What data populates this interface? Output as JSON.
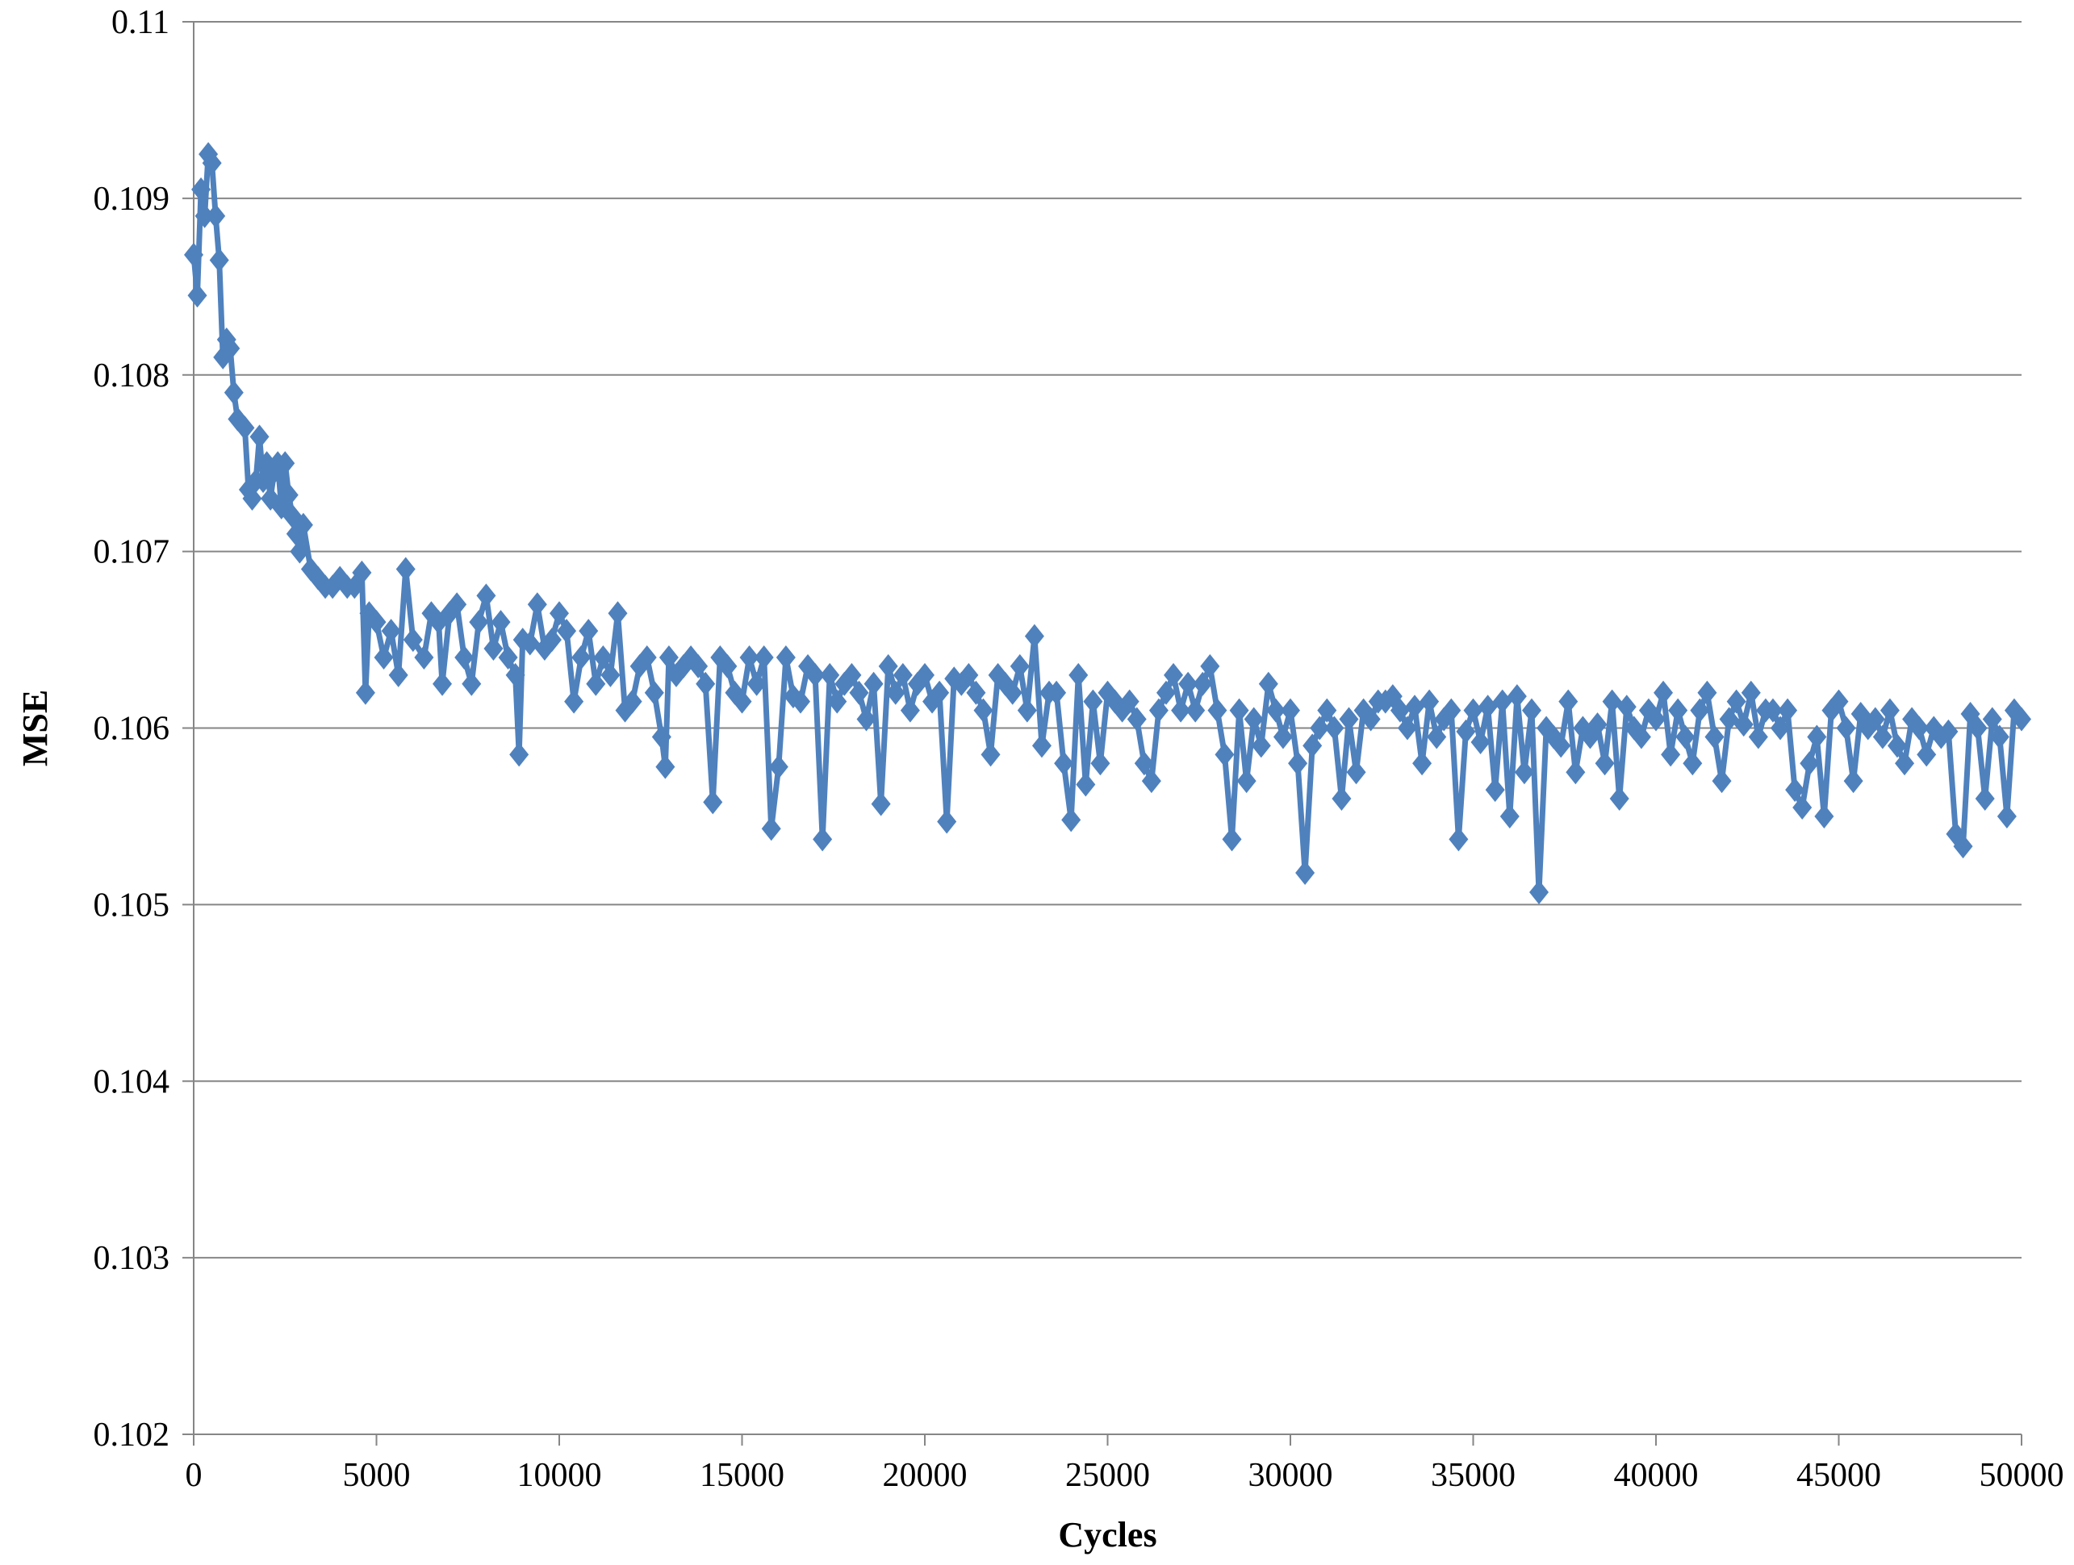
{
  "chart_data": {
    "type": "line",
    "title": "",
    "xlabel": "Cycles",
    "ylabel": "MSE",
    "xlim": [
      0,
      50000
    ],
    "ylim": [
      0.102,
      0.11
    ],
    "x_ticks": [
      "0",
      "5000",
      "10000",
      "15000",
      "20000",
      "25000",
      "30000",
      "35000",
      "40000",
      "45000",
      "50000"
    ],
    "y_ticks": [
      "0.102",
      "0.103",
      "0.104",
      "0.105",
      "0.106",
      "0.107",
      "0.108",
      "0.109",
      "0.11"
    ],
    "grid": "horizontal",
    "legend": "none",
    "marker": "diamond",
    "series": [
      {
        "color": "#4f81bd",
        "points": [
          [
            0,
            0.10868
          ],
          [
            100,
            0.10845
          ],
          [
            200,
            0.10905
          ],
          [
            300,
            0.1089
          ],
          [
            400,
            0.10925
          ],
          [
            500,
            0.1092
          ],
          [
            600,
            0.1089
          ],
          [
            700,
            0.10865
          ],
          [
            800,
            0.1081
          ],
          [
            900,
            0.1082
          ],
          [
            1000,
            0.10815
          ],
          [
            1100,
            0.1079
          ],
          [
            1200,
            0.10775
          ],
          [
            1400,
            0.1077
          ],
          [
            1500,
            0.10735
          ],
          [
            1600,
            0.1073
          ],
          [
            1700,
            0.1074
          ],
          [
            1800,
            0.10765
          ],
          [
            1900,
            0.1074
          ],
          [
            2000,
            0.1075
          ],
          [
            2100,
            0.1073
          ],
          [
            2200,
            0.10745
          ],
          [
            2300,
            0.1075
          ],
          [
            2400,
            0.10725
          ],
          [
            2500,
            0.1075
          ],
          [
            2600,
            0.10732
          ],
          [
            2700,
            0.1072
          ],
          [
            2800,
            0.1071
          ],
          [
            2900,
            0.107
          ],
          [
            3000,
            0.10715
          ],
          [
            3200,
            0.1069
          ],
          [
            3400,
            0.10685
          ],
          [
            3600,
            0.1068
          ],
          [
            3800,
            0.1068
          ],
          [
            4000,
            0.10685
          ],
          [
            4200,
            0.1068
          ],
          [
            4400,
            0.1068
          ],
          [
            4600,
            0.10688
          ],
          [
            4700,
            0.1062
          ],
          [
            4800,
            0.10665
          ],
          [
            5000,
            0.1066
          ],
          [
            5200,
            0.1064
          ],
          [
            5400,
            0.10655
          ],
          [
            5600,
            0.1063
          ],
          [
            5800,
            0.1069
          ],
          [
            6000,
            0.1065
          ],
          [
            6300,
            0.1064
          ],
          [
            6500,
            0.10665
          ],
          [
            6700,
            0.1066
          ],
          [
            6800,
            0.10625
          ],
          [
            7000,
            0.10665
          ],
          [
            7200,
            0.1067
          ],
          [
            7400,
            0.1064
          ],
          [
            7600,
            0.10625
          ],
          [
            7800,
            0.1066
          ],
          [
            8000,
            0.10675
          ],
          [
            8200,
            0.10645
          ],
          [
            8400,
            0.1066
          ],
          [
            8600,
            0.1064
          ],
          [
            8800,
            0.1063
          ],
          [
            8900,
            0.10585
          ],
          [
            9000,
            0.1065
          ],
          [
            9200,
            0.10648
          ],
          [
            9400,
            0.1067
          ],
          [
            9600,
            0.10645
          ],
          [
            9800,
            0.1065
          ],
          [
            10000,
            0.10665
          ],
          [
            10200,
            0.10655
          ],
          [
            10400,
            0.10615
          ],
          [
            10600,
            0.1064
          ],
          [
            10800,
            0.10655
          ],
          [
            11000,
            0.10625
          ],
          [
            11200,
            0.1064
          ],
          [
            11400,
            0.1063
          ],
          [
            11600,
            0.10665
          ],
          [
            11800,
            0.1061
          ],
          [
            12000,
            0.10615
          ],
          [
            12200,
            0.10635
          ],
          [
            12400,
            0.1064
          ],
          [
            12600,
            0.1062
          ],
          [
            12800,
            0.10595
          ],
          [
            12900,
            0.10578
          ],
          [
            13000,
            0.1064
          ],
          [
            13200,
            0.1063
          ],
          [
            13400,
            0.10635
          ],
          [
            13600,
            0.1064
          ],
          [
            13800,
            0.10635
          ],
          [
            14000,
            0.10625
          ],
          [
            14200,
            0.10558
          ],
          [
            14400,
            0.1064
          ],
          [
            14600,
            0.10635
          ],
          [
            14800,
            0.1062
          ],
          [
            15000,
            0.10615
          ],
          [
            15200,
            0.1064
          ],
          [
            15400,
            0.10625
          ],
          [
            15600,
            0.1064
          ],
          [
            15800,
            0.10543
          ],
          [
            16000,
            0.10578
          ],
          [
            16200,
            0.1064
          ],
          [
            16400,
            0.10618
          ],
          [
            16600,
            0.10615
          ],
          [
            16800,
            0.10635
          ],
          [
            17000,
            0.1063
          ],
          [
            17200,
            0.10537
          ],
          [
            17400,
            0.1063
          ],
          [
            17600,
            0.10615
          ],
          [
            17800,
            0.10625
          ],
          [
            18000,
            0.1063
          ],
          [
            18200,
            0.1062
          ],
          [
            18400,
            0.10605
          ],
          [
            18600,
            0.10625
          ],
          [
            18800,
            0.10557
          ],
          [
            19000,
            0.10635
          ],
          [
            19200,
            0.1062
          ],
          [
            19400,
            0.1063
          ],
          [
            19600,
            0.1061
          ],
          [
            19800,
            0.10625
          ],
          [
            20000,
            0.1063
          ],
          [
            20200,
            0.10615
          ],
          [
            20400,
            0.1062
          ],
          [
            20600,
            0.10547
          ],
          [
            20800,
            0.10628
          ],
          [
            21000,
            0.10625
          ],
          [
            21200,
            0.1063
          ],
          [
            21400,
            0.1062
          ],
          [
            21600,
            0.1061
          ],
          [
            21800,
            0.10585
          ],
          [
            22000,
            0.1063
          ],
          [
            22200,
            0.10625
          ],
          [
            22400,
            0.1062
          ],
          [
            22600,
            0.10635
          ],
          [
            22800,
            0.1061
          ],
          [
            23000,
            0.10652
          ],
          [
            23200,
            0.1059
          ],
          [
            23400,
            0.1062
          ],
          [
            23600,
            0.1062
          ],
          [
            23800,
            0.1058
          ],
          [
            24000,
            0.10548
          ],
          [
            24200,
            0.1063
          ],
          [
            24400,
            0.10568
          ],
          [
            24600,
            0.10615
          ],
          [
            24800,
            0.1058
          ],
          [
            25000,
            0.1062
          ],
          [
            25200,
            0.10615
          ],
          [
            25400,
            0.1061
          ],
          [
            25600,
            0.10615
          ],
          [
            25800,
            0.10605
          ],
          [
            26000,
            0.1058
          ],
          [
            26200,
            0.1057
          ],
          [
            26400,
            0.1061
          ],
          [
            26600,
            0.1062
          ],
          [
            26800,
            0.1063
          ],
          [
            27000,
            0.1061
          ],
          [
            27200,
            0.10625
          ],
          [
            27400,
            0.1061
          ],
          [
            27600,
            0.10625
          ],
          [
            27800,
            0.10635
          ],
          [
            28000,
            0.1061
          ],
          [
            28200,
            0.10585
          ],
          [
            28400,
            0.10537
          ],
          [
            28600,
            0.1061
          ],
          [
            28800,
            0.1057
          ],
          [
            29000,
            0.10605
          ],
          [
            29200,
            0.1059
          ],
          [
            29400,
            0.10625
          ],
          [
            29600,
            0.1061
          ],
          [
            29800,
            0.10595
          ],
          [
            30000,
            0.1061
          ],
          [
            30200,
            0.1058
          ],
          [
            30400,
            0.10518
          ],
          [
            30600,
            0.1059
          ],
          [
            30800,
            0.106
          ],
          [
            31000,
            0.1061
          ],
          [
            31200,
            0.106
          ],
          [
            31400,
            0.1056
          ],
          [
            31600,
            0.10605
          ],
          [
            31800,
            0.10575
          ],
          [
            32000,
            0.1061
          ],
          [
            32200,
            0.10605
          ],
          [
            32400,
            0.10615
          ],
          [
            32600,
            0.10615
          ],
          [
            32800,
            0.10618
          ],
          [
            33000,
            0.1061
          ],
          [
            33200,
            0.106
          ],
          [
            33400,
            0.10612
          ],
          [
            33600,
            0.1058
          ],
          [
            33800,
            0.10615
          ],
          [
            34000,
            0.10595
          ],
          [
            34200,
            0.10605
          ],
          [
            34400,
            0.1061
          ],
          [
            34600,
            0.10537
          ],
          [
            34800,
            0.10598
          ],
          [
            35000,
            0.1061
          ],
          [
            35200,
            0.10592
          ],
          [
            35400,
            0.10612
          ],
          [
            35600,
            0.10565
          ],
          [
            35800,
            0.10615
          ],
          [
            36000,
            0.1055
          ],
          [
            36200,
            0.10618
          ],
          [
            36400,
            0.10575
          ],
          [
            36600,
            0.1061
          ],
          [
            36800,
            0.10507
          ],
          [
            37000,
            0.106
          ],
          [
            37200,
            0.10595
          ],
          [
            37400,
            0.1059
          ],
          [
            37600,
            0.10615
          ],
          [
            37800,
            0.10575
          ],
          [
            38000,
            0.106
          ],
          [
            38200,
            0.10595
          ],
          [
            38400,
            0.10602
          ],
          [
            38600,
            0.1058
          ],
          [
            38800,
            0.10615
          ],
          [
            39000,
            0.1056
          ],
          [
            39200,
            0.10612
          ],
          [
            39400,
            0.106
          ],
          [
            39600,
            0.10595
          ],
          [
            39800,
            0.1061
          ],
          [
            40000,
            0.10605
          ],
          [
            40200,
            0.1062
          ],
          [
            40400,
            0.10585
          ],
          [
            40600,
            0.1061
          ],
          [
            40800,
            0.10595
          ],
          [
            41000,
            0.1058
          ],
          [
            41200,
            0.1061
          ],
          [
            41400,
            0.1062
          ],
          [
            41600,
            0.10595
          ],
          [
            41800,
            0.1057
          ],
          [
            42000,
            0.10605
          ],
          [
            42200,
            0.10615
          ],
          [
            42400,
            0.10602
          ],
          [
            42600,
            0.1062
          ],
          [
            42800,
            0.10595
          ],
          [
            43000,
            0.1061
          ],
          [
            43200,
            0.1061
          ],
          [
            43400,
            0.106
          ],
          [
            43600,
            0.1061
          ],
          [
            43800,
            0.10565
          ],
          [
            44000,
            0.10555
          ],
          [
            44200,
            0.1058
          ],
          [
            44400,
            0.10595
          ],
          [
            44600,
            0.1055
          ],
          [
            44800,
            0.1061
          ],
          [
            45000,
            0.10615
          ],
          [
            45200,
            0.106
          ],
          [
            45400,
            0.1057
          ],
          [
            45600,
            0.10608
          ],
          [
            45800,
            0.106
          ],
          [
            46000,
            0.10605
          ],
          [
            46200,
            0.10595
          ],
          [
            46400,
            0.1061
          ],
          [
            46600,
            0.1059
          ],
          [
            46800,
            0.1058
          ],
          [
            47000,
            0.10605
          ],
          [
            47200,
            0.106
          ],
          [
            47400,
            0.10585
          ],
          [
            47600,
            0.106
          ],
          [
            47800,
            0.10595
          ],
          [
            48000,
            0.10598
          ],
          [
            48200,
            0.1054
          ],
          [
            48400,
            0.10533
          ],
          [
            48600,
            0.10608
          ],
          [
            48800,
            0.106
          ],
          [
            49000,
            0.1056
          ],
          [
            49200,
            0.10605
          ],
          [
            49400,
            0.10595
          ],
          [
            49600,
            0.1055
          ],
          [
            49800,
            0.1061
          ],
          [
            50000,
            0.10605
          ]
        ]
      }
    ]
  }
}
